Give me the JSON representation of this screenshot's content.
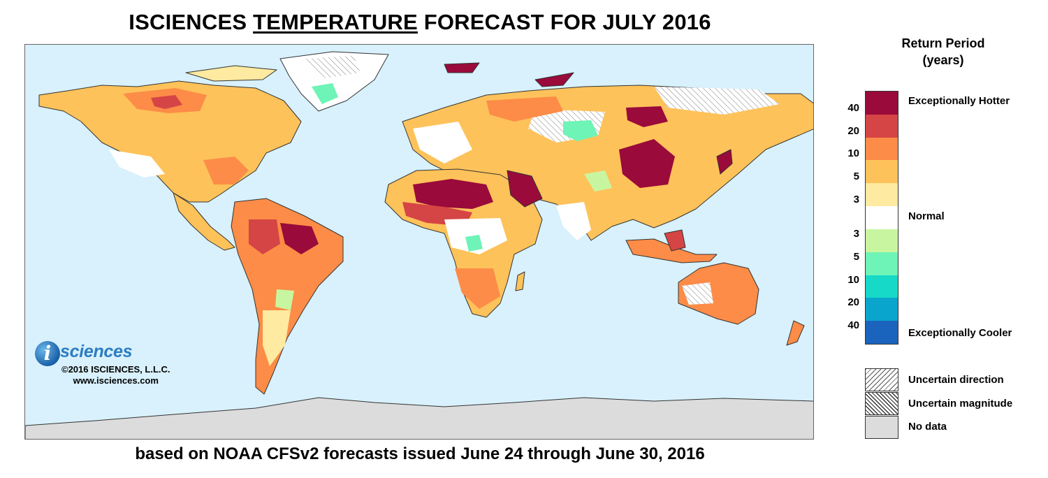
{
  "title": {
    "prefix": "ISCIENCES",
    "emphasis": "TEMPERATURE",
    "suffix": "FORECAST FOR JULY 2016"
  },
  "subtitle": "based on NOAA CFSv2 forecasts issued June 24 through June 30, 2016",
  "logo": {
    "brand": "sciences",
    "icon": "isciences-i-logo",
    "copyright": "©2016 ISCIENCES, L.L.C.",
    "website": "www.isciences.com"
  },
  "legend": {
    "title_line1": "Return Period",
    "title_line2": "(years)",
    "bins": [
      {
        "color": "#9a0a3a"
      },
      {
        "color": "#d54545"
      },
      {
        "color": "#fc8c47"
      },
      {
        "color": "#fec25a"
      },
      {
        "color": "#feeaa0"
      },
      {
        "color": "#ffffff"
      },
      {
        "color": "#c8f6a0"
      },
      {
        "color": "#6ef4b6"
      },
      {
        "color": "#16d9c8"
      },
      {
        "color": "#0aa5cc"
      },
      {
        "color": "#1a64bd"
      }
    ],
    "ticks": [
      "40",
      "20",
      "10",
      "5",
      "3",
      "3",
      "5",
      "10",
      "20",
      "40"
    ],
    "category_labels": {
      "hot": "Exceptionally Hotter",
      "normal": "Normal",
      "cool": "Exceptionally Cooler"
    },
    "pattern_keys": [
      {
        "label": "Uncertain direction"
      },
      {
        "label": "Uncertain magnitude"
      },
      {
        "label": "No data"
      }
    ]
  },
  "map": {
    "ocean_color": "#d8f1fc",
    "no_data_color": "#dcdcdc"
  }
}
